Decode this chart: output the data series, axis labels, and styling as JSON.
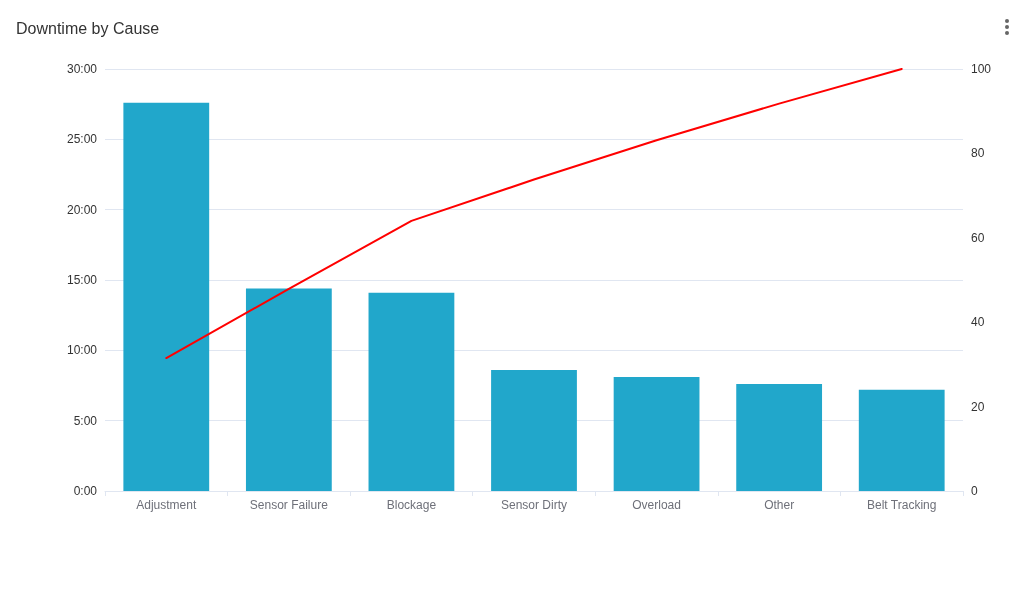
{
  "chart_data": {
    "type": "bar",
    "title": "Downtime by Cause",
    "categories": [
      "Adjustment",
      "Sensor Failure",
      "Blockage",
      "Sensor Dirty",
      "Overload",
      "Other",
      "Belt Tracking"
    ],
    "series": [
      {
        "color": "#21a7cb",
        "values": [
          27.6,
          14.4,
          14.1,
          8.6,
          8.1,
          7.6,
          7.2
        ]
      },
      {
        "type": "line",
        "axis": "y2",
        "color": "#ff0000",
        "values": [
          31.5,
          47.9,
          64.0,
          73.8,
          83.1,
          91.8,
          100
        ]
      }
    ],
    "ylim": [
      0,
      30
    ],
    "yticks": [
      {
        "value": 0,
        "label": "0:00"
      },
      {
        "value": 5,
        "label": "5:00"
      },
      {
        "value": 10,
        "label": "10:00"
      },
      {
        "value": 15,
        "label": "15:00"
      },
      {
        "value": 20,
        "label": "20:00"
      },
      {
        "value": 25,
        "label": "25:00"
      },
      {
        "value": 30,
        "label": "30:00"
      }
    ],
    "y2lim": [
      0,
      100
    ],
    "y2ticks": [
      0,
      20,
      40,
      60,
      80,
      100
    ],
    "grid": "y",
    "marker": "none",
    "line_style": "solid"
  }
}
